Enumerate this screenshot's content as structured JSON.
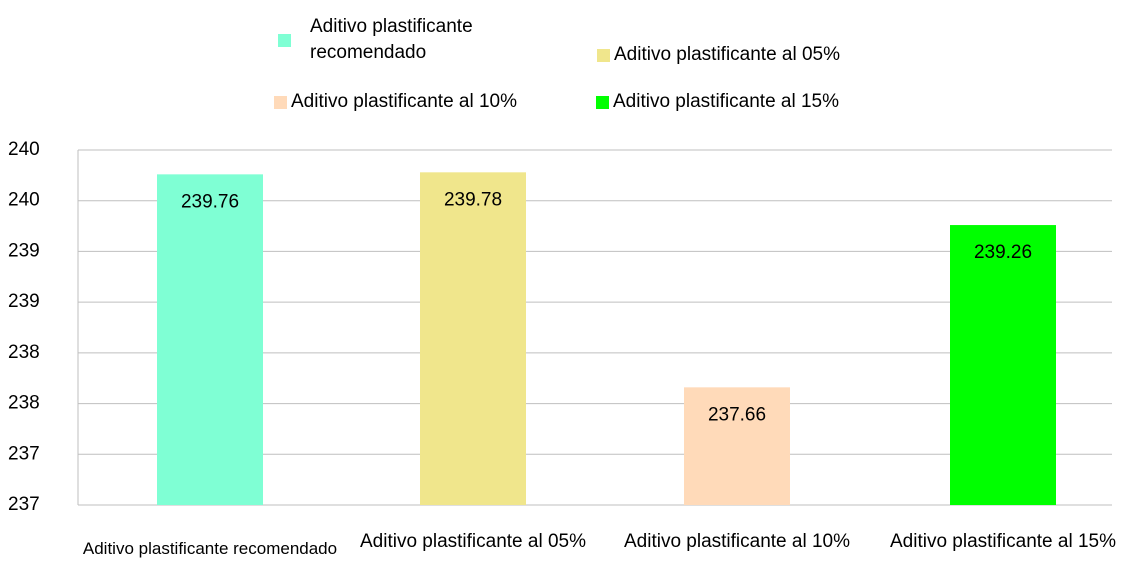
{
  "chart_data": {
    "type": "bar",
    "categories": [
      "Aditivo plastificante recomendado",
      "Aditivo plastificante al 05%",
      "Aditivo plastificante al 10%",
      "Aditivo plastificante al 15%"
    ],
    "values": [
      239.76,
      239.78,
      237.66,
      239.26
    ],
    "colors": [
      "#7fffd4",
      "#f0e68c",
      "#ffdab9",
      "#00ff00"
    ],
    "ylim": [
      236.5,
      240.0
    ],
    "yticks": [
      {
        "value": 236.5,
        "label": "237"
      },
      {
        "value": 237.0,
        "label": "237"
      },
      {
        "value": 237.5,
        "label": "238"
      },
      {
        "value": 238.0,
        "label": "238"
      },
      {
        "value": 238.5,
        "label": "239"
      },
      {
        "value": 239.0,
        "label": "239"
      },
      {
        "value": 239.5,
        "label": "240"
      },
      {
        "value": 240.0,
        "label": "240"
      }
    ],
    "grid": true,
    "legend": "top"
  }
}
